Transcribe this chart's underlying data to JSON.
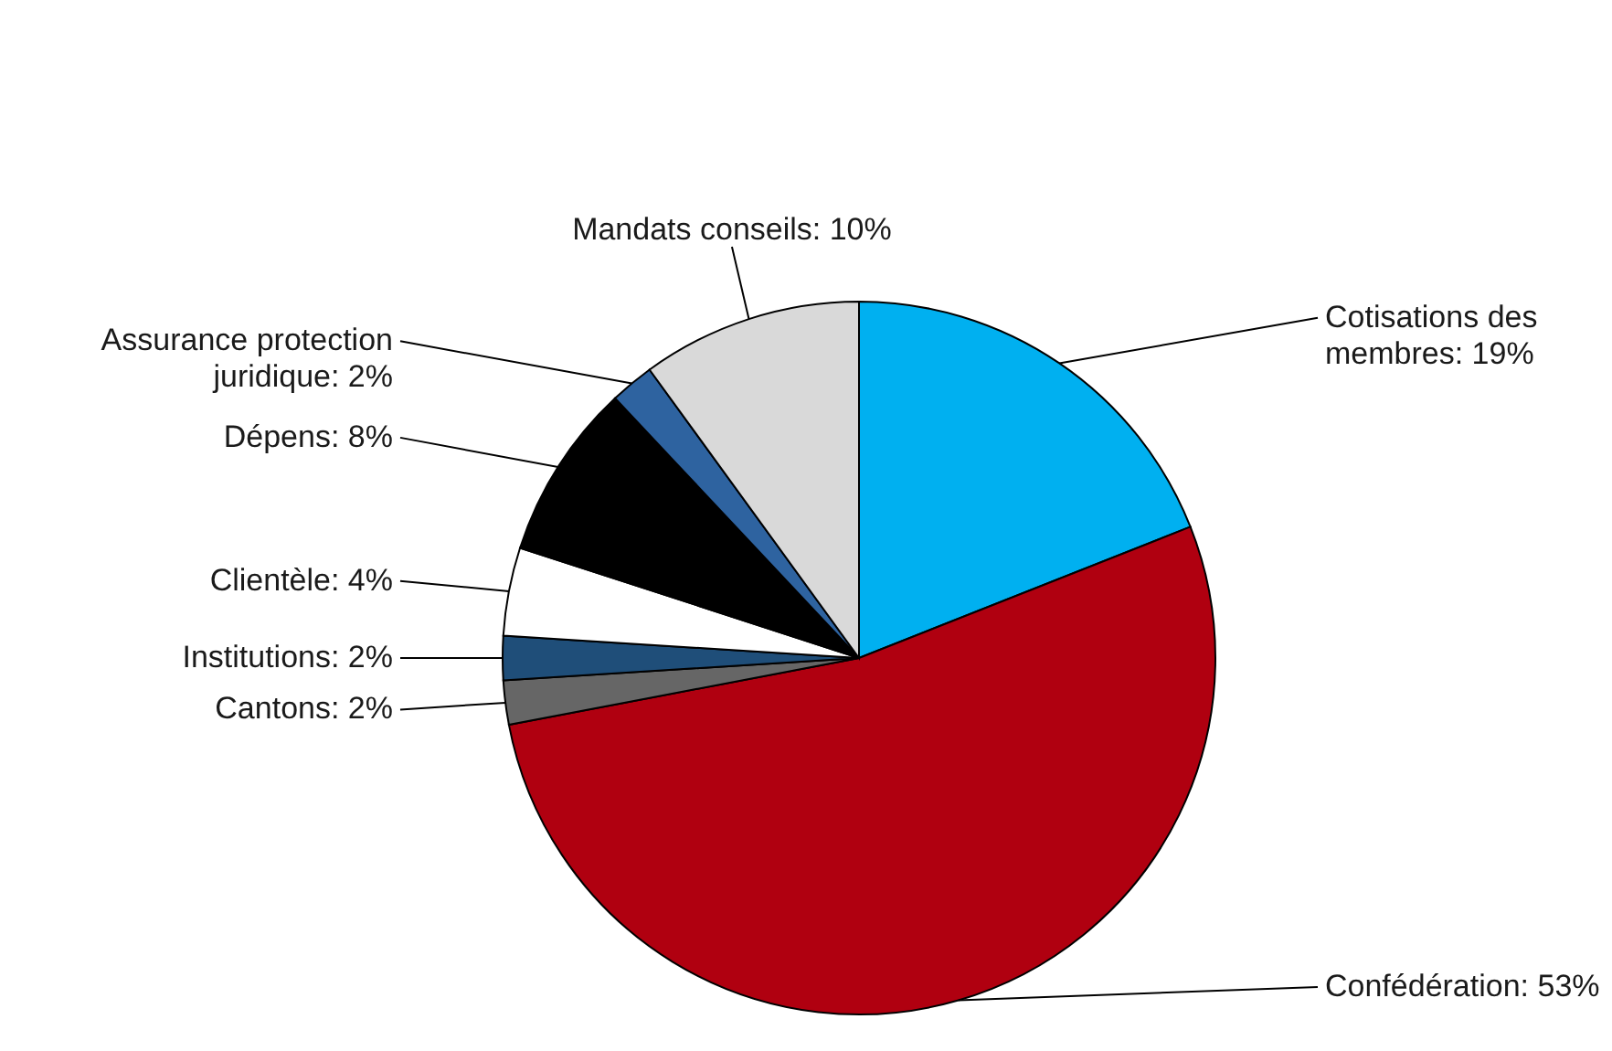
{
  "chart_data": {
    "type": "pie",
    "categories": [
      "Cotisations des membres",
      "Confédération",
      "Cantons",
      "Institutions",
      "Clientèle",
      "Dépens",
      "Assurance protection juridique",
      "Mandats conseils"
    ],
    "values": [
      19,
      53,
      2,
      2,
      4,
      8,
      2,
      10
    ],
    "value_labels": [
      "19%",
      "53%",
      "2%",
      "2%",
      "4%",
      "8%",
      "2%",
      "10%"
    ],
    "colors": [
      "#00b0f0",
      "#b00010",
      "#666666",
      "#1f4e79",
      "#ffffff",
      "#000000",
      "#2e63a0",
      "#d9d9d9"
    ]
  }
}
